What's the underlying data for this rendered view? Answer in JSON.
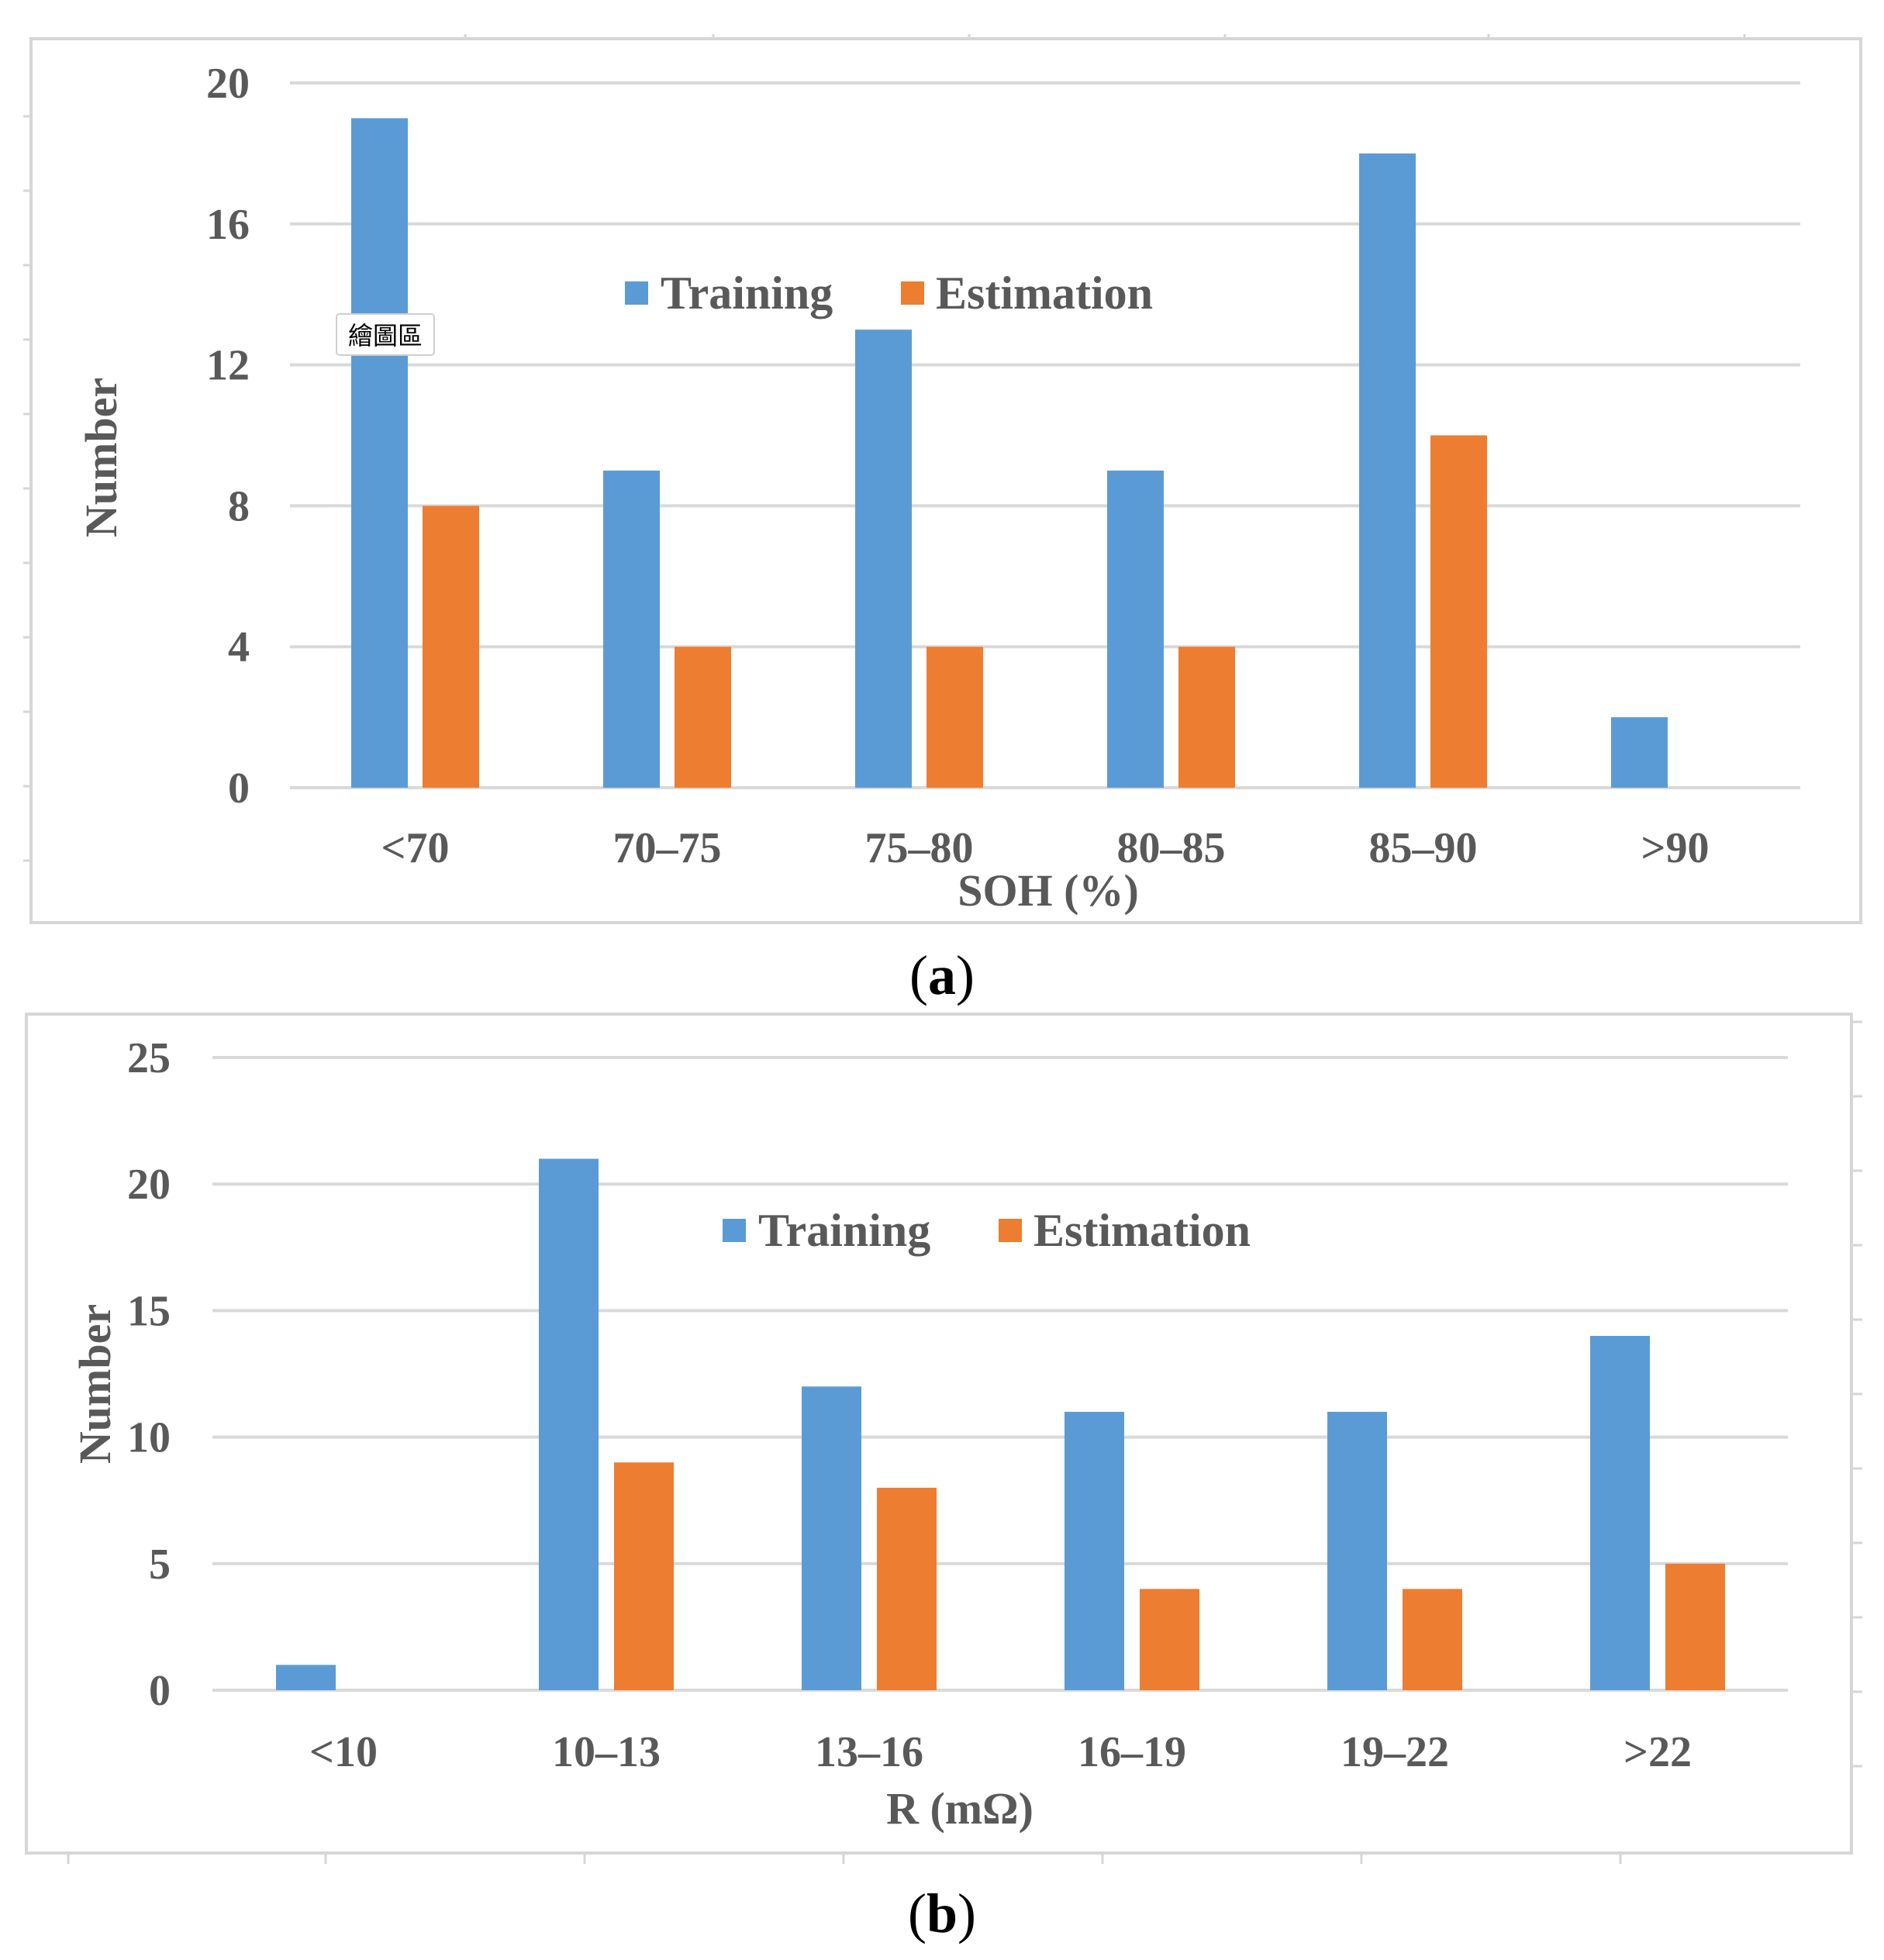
{
  "colors": {
    "training": "#5b9bd5",
    "estimation": "#ed7d31"
  },
  "tooltip": {
    "text": "繪圖區"
  },
  "chart_data": [
    {
      "type": "bar",
      "panel_label": "a",
      "categories": [
        "<70",
        "70–75",
        "75–80",
        "80–85",
        "85–90",
        ">90"
      ],
      "series": [
        {
          "name": "Training",
          "values": [
            19,
            9,
            13,
            9,
            18,
            2
          ]
        },
        {
          "name": "Estimation",
          "values": [
            8,
            4,
            4,
            4,
            10,
            0
          ]
        }
      ],
      "xlabel": "SOH (%)",
      "ylabel": "Number",
      "ylim": [
        0,
        20
      ],
      "yticks": [
        0,
        4,
        8,
        12,
        16,
        20
      ],
      "grid": true,
      "legend": "top-center"
    },
    {
      "type": "bar",
      "panel_label": "b",
      "categories": [
        "<10",
        "10–13",
        "13–16",
        "16–19",
        "19–22",
        ">22"
      ],
      "series": [
        {
          "name": "Training",
          "values": [
            1,
            21,
            12,
            11,
            11,
            14
          ]
        },
        {
          "name": "Estimation",
          "values": [
            0,
            9,
            8,
            4,
            4,
            5
          ]
        }
      ],
      "xlabel": "R (mΩ)",
      "ylabel": "Number",
      "ylim": [
        0,
        25
      ],
      "yticks": [
        0,
        5,
        10,
        15,
        20,
        25
      ],
      "grid": true,
      "legend": "top-center"
    }
  ]
}
